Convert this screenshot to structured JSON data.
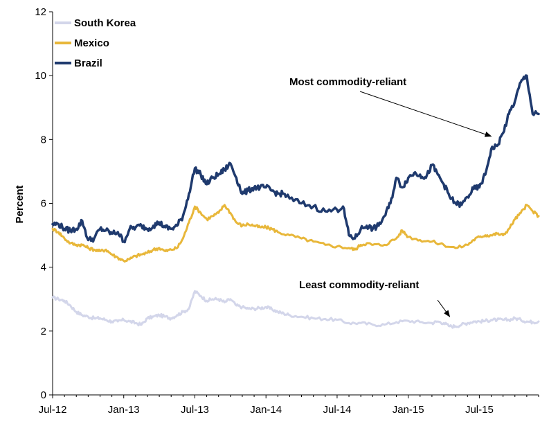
{
  "chart_data": {
    "type": "line",
    "ylabel": "Percent",
    "xlabel": "",
    "title": "",
    "ylim": [
      0,
      12
    ],
    "yticks": [
      0,
      2,
      4,
      6,
      8,
      10,
      12
    ],
    "xlim": [
      0,
      41
    ],
    "x_unit": "months since Jul-12",
    "xticks": [
      {
        "label": "Jul-12",
        "month": 0
      },
      {
        "label": "Jan-13",
        "month": 6
      },
      {
        "label": "Jul-13",
        "month": 12
      },
      {
        "label": "Jan-14",
        "month": 18
      },
      {
        "label": "Jul-14",
        "month": 24
      },
      {
        "label": "Jan-15",
        "month": 30
      },
      {
        "label": "Jul-15",
        "month": 36
      }
    ],
    "legend_position": "top-left",
    "grid": false,
    "series": [
      {
        "name": "South Korea",
        "color": "#d3d6ea",
        "points": [
          [
            0,
            3.05
          ],
          [
            0.5,
            3.0
          ],
          [
            1,
            2.95
          ],
          [
            1.5,
            2.8
          ],
          [
            2,
            2.6
          ],
          [
            2.5,
            2.5
          ],
          [
            3,
            2.45
          ],
          [
            3.5,
            2.4
          ],
          [
            4,
            2.4
          ],
          [
            4.5,
            2.35
          ],
          [
            5,
            2.3
          ],
          [
            5.5,
            2.3
          ],
          [
            6,
            2.35
          ],
          [
            6.5,
            2.3
          ],
          [
            7,
            2.25
          ],
          [
            7.5,
            2.2
          ],
          [
            8,
            2.4
          ],
          [
            8.5,
            2.45
          ],
          [
            9,
            2.5
          ],
          [
            9.5,
            2.45
          ],
          [
            10,
            2.4
          ],
          [
            10.5,
            2.5
          ],
          [
            11,
            2.6
          ],
          [
            11.5,
            2.7
          ],
          [
            12,
            3.25
          ],
          [
            12.5,
            3.1
          ],
          [
            13,
            2.95
          ],
          [
            13.5,
            3.0
          ],
          [
            14,
            3.0
          ],
          [
            14.5,
            2.9
          ],
          [
            15,
            3.0
          ],
          [
            15.5,
            2.8
          ],
          [
            16,
            2.75
          ],
          [
            16.5,
            2.7
          ],
          [
            17,
            2.7
          ],
          [
            17.5,
            2.72
          ],
          [
            18,
            2.75
          ],
          [
            18.5,
            2.68
          ],
          [
            19,
            2.6
          ],
          [
            19.5,
            2.55
          ],
          [
            20,
            2.5
          ],
          [
            21,
            2.45
          ],
          [
            22,
            2.4
          ],
          [
            23,
            2.38
          ],
          [
            24,
            2.35
          ],
          [
            25,
            2.25
          ],
          [
            26,
            2.25
          ],
          [
            27,
            2.2
          ],
          [
            28,
            2.2
          ],
          [
            29,
            2.28
          ],
          [
            30,
            2.32
          ],
          [
            31,
            2.28
          ],
          [
            32,
            2.25
          ],
          [
            32.5,
            2.3
          ],
          [
            33,
            2.25
          ],
          [
            33.5,
            2.15
          ],
          [
            34,
            2.15
          ],
          [
            34.5,
            2.2
          ],
          [
            35,
            2.25
          ],
          [
            35.5,
            2.3
          ],
          [
            36,
            2.3
          ],
          [
            36.5,
            2.32
          ],
          [
            37,
            2.35
          ],
          [
            37.5,
            2.35
          ],
          [
            38,
            2.35
          ],
          [
            38.5,
            2.35
          ],
          [
            39,
            2.4
          ],
          [
            39.5,
            2.35
          ],
          [
            40,
            2.3
          ],
          [
            40.5,
            2.28
          ],
          [
            41,
            2.3
          ]
        ]
      },
      {
        "name": "Mexico",
        "color": "#e8b73a",
        "points": [
          [
            0,
            5.2
          ],
          [
            0.5,
            5.1
          ],
          [
            1,
            4.9
          ],
          [
            1.5,
            4.75
          ],
          [
            2,
            4.7
          ],
          [
            2.5,
            4.7
          ],
          [
            3,
            4.6
          ],
          [
            3.5,
            4.55
          ],
          [
            4,
            4.5
          ],
          [
            4.5,
            4.55
          ],
          [
            5,
            4.4
          ],
          [
            5.5,
            4.3
          ],
          [
            6,
            4.2
          ],
          [
            6.5,
            4.25
          ],
          [
            7,
            4.35
          ],
          [
            7.5,
            4.4
          ],
          [
            8,
            4.45
          ],
          [
            8.5,
            4.55
          ],
          [
            9,
            4.6
          ],
          [
            9.5,
            4.5
          ],
          [
            10,
            4.55
          ],
          [
            10.5,
            4.6
          ],
          [
            11,
            4.9
          ],
          [
            11.5,
            5.4
          ],
          [
            12,
            5.9
          ],
          [
            12.5,
            5.7
          ],
          [
            13,
            5.5
          ],
          [
            13.5,
            5.6
          ],
          [
            14,
            5.7
          ],
          [
            14.5,
            5.95
          ],
          [
            15,
            5.7
          ],
          [
            15.5,
            5.4
          ],
          [
            16,
            5.3
          ],
          [
            16.5,
            5.35
          ],
          [
            17,
            5.3
          ],
          [
            17.5,
            5.25
          ],
          [
            18,
            5.25
          ],
          [
            18.5,
            5.2
          ],
          [
            19,
            5.1
          ],
          [
            20,
            5.0
          ],
          [
            21,
            4.9
          ],
          [
            22,
            4.8
          ],
          [
            23,
            4.7
          ],
          [
            24,
            4.65
          ],
          [
            25,
            4.6
          ],
          [
            25.5,
            4.55
          ],
          [
            26,
            4.7
          ],
          [
            26.5,
            4.75
          ],
          [
            27,
            4.7
          ],
          [
            28,
            4.7
          ],
          [
            29,
            4.9
          ],
          [
            29.5,
            5.15
          ],
          [
            30,
            4.95
          ],
          [
            31,
            4.85
          ],
          [
            32,
            4.8
          ],
          [
            33,
            4.7
          ],
          [
            34,
            4.6
          ],
          [
            35,
            4.7
          ],
          [
            35.5,
            4.85
          ],
          [
            36,
            4.95
          ],
          [
            36.5,
            5.0
          ],
          [
            37,
            5.0
          ],
          [
            37.5,
            5.05
          ],
          [
            38,
            5.0
          ],
          [
            38.5,
            5.2
          ],
          [
            39,
            5.5
          ],
          [
            39.5,
            5.7
          ],
          [
            40,
            5.95
          ],
          [
            40.5,
            5.75
          ],
          [
            41,
            5.6
          ]
        ]
      },
      {
        "name": "Brazil",
        "color": "#1f3a6e",
        "points": [
          [
            0,
            5.35
          ],
          [
            0.5,
            5.35
          ],
          [
            1,
            5.2
          ],
          [
            1.5,
            5.15
          ],
          [
            2,
            5.2
          ],
          [
            2.5,
            5.45
          ],
          [
            3,
            4.85
          ],
          [
            3.5,
            4.9
          ],
          [
            4,
            5.2
          ],
          [
            4.5,
            5.15
          ],
          [
            5,
            5.05
          ],
          [
            5.5,
            5.1
          ],
          [
            6,
            4.8
          ],
          [
            6.5,
            5.2
          ],
          [
            7,
            5.25
          ],
          [
            7.5,
            5.3
          ],
          [
            8,
            5.2
          ],
          [
            8.5,
            5.3
          ],
          [
            9,
            5.4
          ],
          [
            9.5,
            5.25
          ],
          [
            10,
            5.2
          ],
          [
            10.5,
            5.3
          ],
          [
            11,
            5.6
          ],
          [
            11.5,
            6.3
          ],
          [
            12,
            7.1
          ],
          [
            12.5,
            6.9
          ],
          [
            13,
            6.6
          ],
          [
            13.5,
            6.8
          ],
          [
            14,
            6.9
          ],
          [
            14.5,
            7.05
          ],
          [
            15,
            7.25
          ],
          [
            15.5,
            6.8
          ],
          [
            16,
            6.3
          ],
          [
            16.5,
            6.4
          ],
          [
            17,
            6.5
          ],
          [
            17.5,
            6.5
          ],
          [
            18,
            6.5
          ],
          [
            18.5,
            6.4
          ],
          [
            19,
            6.3
          ],
          [
            19.5,
            6.3
          ],
          [
            20,
            6.15
          ],
          [
            21,
            6.0
          ],
          [
            22,
            5.9
          ],
          [
            23,
            5.75
          ],
          [
            24,
            5.8
          ],
          [
            24.5,
            5.9
          ],
          [
            25,
            5.0
          ],
          [
            25.5,
            4.9
          ],
          [
            26,
            5.2
          ],
          [
            26.5,
            5.3
          ],
          [
            27,
            5.2
          ],
          [
            27.5,
            5.3
          ],
          [
            28,
            5.6
          ],
          [
            28.5,
            6.0
          ],
          [
            29,
            6.8
          ],
          [
            29.5,
            6.5
          ],
          [
            30,
            6.8
          ],
          [
            30.5,
            6.95
          ],
          [
            31,
            6.9
          ],
          [
            31.5,
            6.8
          ],
          [
            32,
            7.2
          ],
          [
            32.5,
            6.9
          ],
          [
            33,
            6.6
          ],
          [
            33.5,
            6.2
          ],
          [
            34,
            6.0
          ],
          [
            34.5,
            5.95
          ],
          [
            35,
            6.2
          ],
          [
            35.5,
            6.45
          ],
          [
            36,
            6.5
          ],
          [
            36.5,
            6.9
          ],
          [
            37,
            7.7
          ],
          [
            37.5,
            7.8
          ],
          [
            38,
            8.2
          ],
          [
            38.5,
            8.8
          ],
          [
            39,
            9.2
          ],
          [
            39.5,
            9.8
          ],
          [
            40,
            10.0
          ],
          [
            40.5,
            8.8
          ],
          [
            41,
            8.8
          ]
        ]
      }
    ],
    "annotations": [
      {
        "text": "Most commodity-reliant",
        "points_to_series": "Brazil",
        "x_month": 37.0,
        "y": 8.1
      },
      {
        "text": "Least commodity-reliant",
        "points_to_series": "South Korea",
        "x_month": 33.5,
        "y": 2.45
      }
    ]
  }
}
